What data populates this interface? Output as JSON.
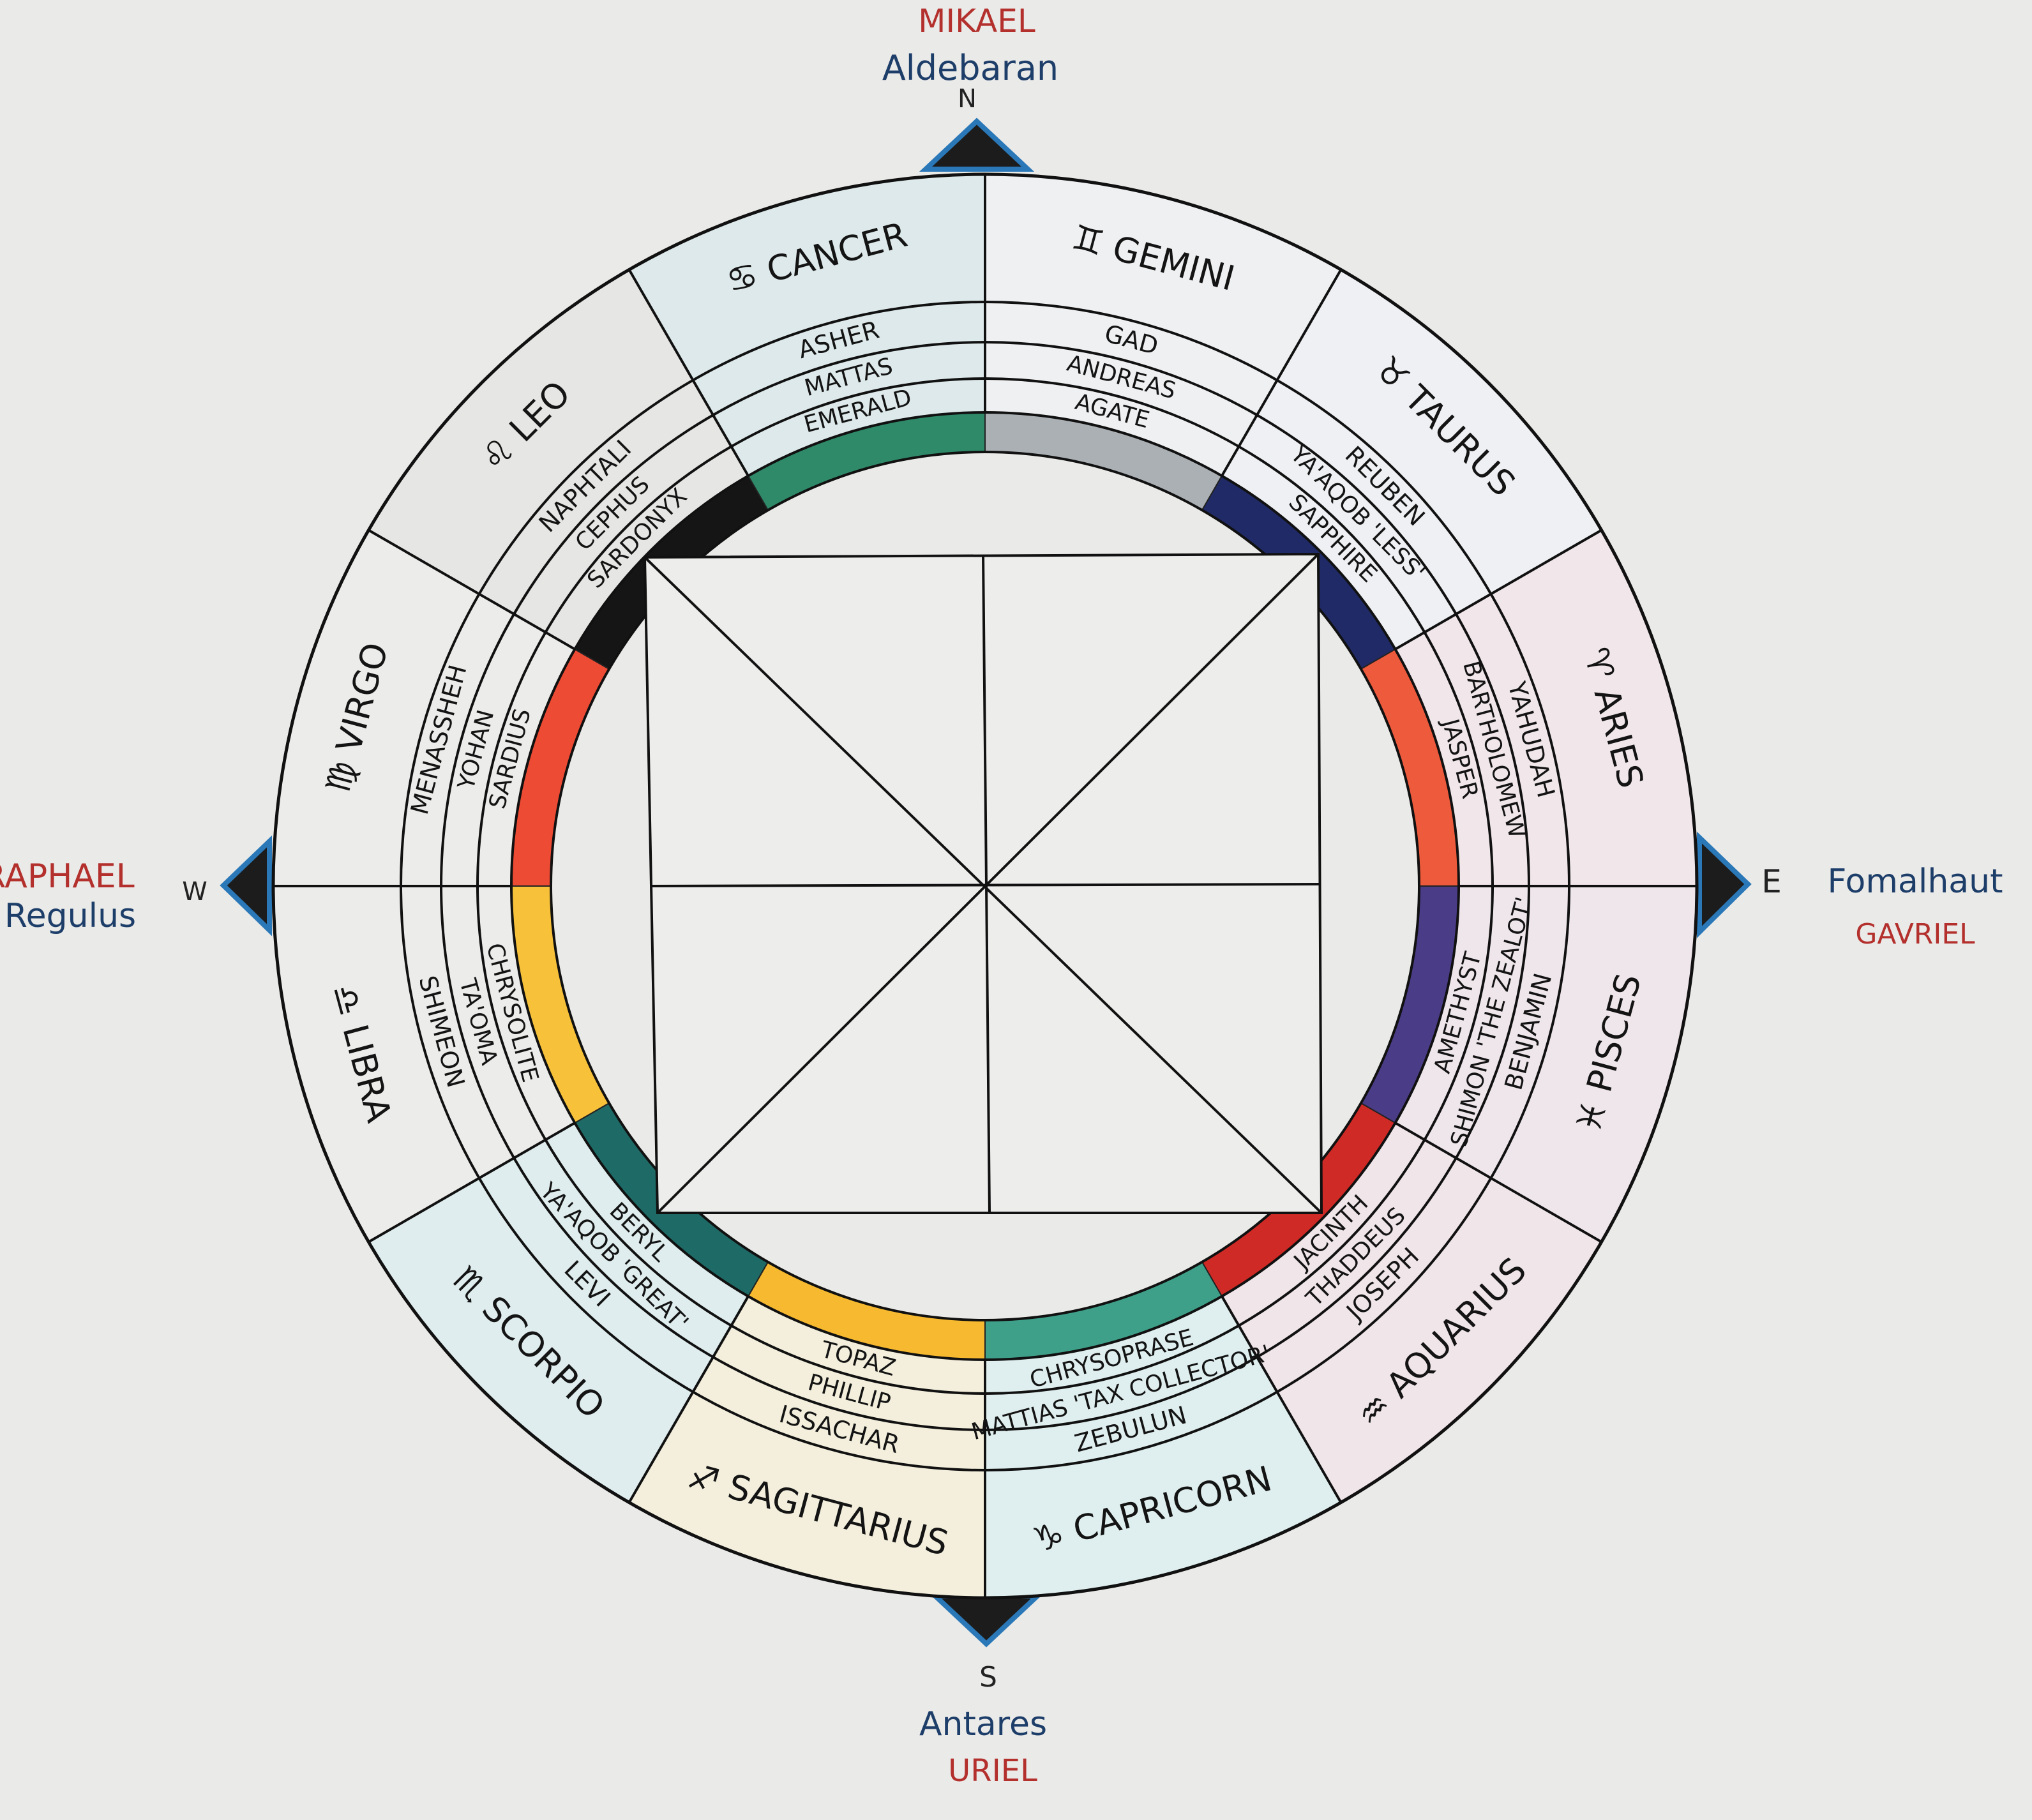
{
  "compass": {
    "north": {
      "letter": "N",
      "star": "Aldebaran",
      "angel": "MIKAEL"
    },
    "east": {
      "letter": "E",
      "star": "Fomalhaut",
      "angel": "GAVRIEL"
    },
    "south": {
      "letter": "S",
      "star": "Antares",
      "angel": "URIEL"
    },
    "west": {
      "letter": "W",
      "star": "Regulus",
      "angel": "RAPHAEL"
    }
  },
  "sectors": [
    {
      "sign": "GEMINI",
      "glyph": "♊",
      "tribe": "GAD",
      "apostle": "ANDREAS",
      "stone": "AGATE",
      "stone_color": "#aab0b4",
      "bg": "#eef0f2"
    },
    {
      "sign": "TAURUS",
      "glyph": "♉",
      "tribe": "REUBEN",
      "apostle": "YA'AQOB 'LESS'",
      "stone": "SAPPHIRE",
      "stone_color": "#1f2a66",
      "bg": "#eef0f3"
    },
    {
      "sign": "ARIES",
      "glyph": "♈",
      "tribe": "YAHUDAH",
      "apostle": "BARTHOLOMEW",
      "stone": "JASPER",
      "stone_color": "#ee5a3c",
      "bg": "#f1e7ea"
    },
    {
      "sign": "PISCES",
      "glyph": "♓",
      "tribe": "BENJAMIN",
      "apostle": "SHIMON 'THE ZEALOT'",
      "stone": "AMETHYST",
      "stone_color": "#4a3c86",
      "bg": "#efe6eb"
    },
    {
      "sign": "AQUARIUS",
      "glyph": "♒",
      "tribe": "JOSEPH",
      "apostle": "THADDEUS",
      "stone": "JACINTH",
      "stone_color": "#cf2a25",
      "bg": "#f0e5e8"
    },
    {
      "sign": "CAPRICORN",
      "glyph": "♑",
      "tribe": "ZEBULUN",
      "apostle": "MATTIAS 'TAX COLLECTOR'",
      "stone": "CHRYSOPRASE",
      "stone_color": "#3fa08a",
      "bg": "#dfeeee"
    },
    {
      "sign": "SAGITTARIUS",
      "glyph": "♐",
      "tribe": "ISSACHAR",
      "apostle": "PHILLIP",
      "stone": "TOPAZ",
      "stone_color": "#f6b92f",
      "bg": "#f3efdc"
    },
    {
      "sign": "SCORPIO",
      "glyph": "♏",
      "tribe": "LEVI",
      "apostle": "YA'AQOB 'GREAT'",
      "stone": "BERYL",
      "stone_color": "#1e6a66",
      "bg": "#dfedee"
    },
    {
      "sign": "LIBRA",
      "glyph": "♎",
      "tribe": "SHIMEON",
      "apostle": "TA'OMA",
      "stone": "CHRYSOLITE",
      "stone_color": "#f7c23a",
      "bg": "#ececea"
    },
    {
      "sign": "VIRGO",
      "glyph": "♍",
      "tribe": "MENASSHEH",
      "apostle": "YOHAN",
      "stone": "SARDIUS",
      "stone_color": "#ee4b34",
      "bg": "#ececea"
    },
    {
      "sign": "LEO",
      "glyph": "♌",
      "tribe": "NAPHTALI",
      "apostle": "CEPHUS",
      "stone": "SARDONYX",
      "stone_color": "#151515",
      "bg": "#e6e6e4"
    },
    {
      "sign": "CANCER",
      "glyph": "♋",
      "tribe": "ASHER",
      "apostle": "MATTAS",
      "stone": "EMERALD",
      "stone_color": "#2f8a6a",
      "bg": "#dde9ea"
    }
  ]
}
